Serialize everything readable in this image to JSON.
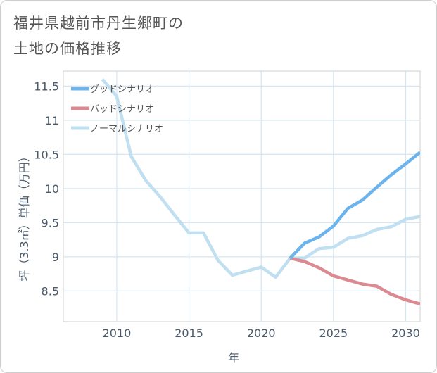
{
  "title_lines": [
    "福井県越前市丹生郷町の",
    "土地の価格推移"
  ],
  "chart_data": {
    "type": "line",
    "xlabel": "年",
    "ylabel": "坪（3.3㎡）単価（万円）",
    "xlim": [
      2006.3,
      2031
    ],
    "ylim": [
      8.05,
      11.72
    ],
    "x_ticks": [
      2010,
      2015,
      2020,
      2025,
      2030
    ],
    "x_tick_labels": [
      "2010",
      "2015",
      "2020",
      "2025",
      "2030"
    ],
    "y_ticks": [
      8.5,
      9,
      9.5,
      10,
      10.5,
      11,
      11.5
    ],
    "y_tick_labels": [
      "8.5",
      "9",
      "9.5",
      "10",
      "10.5",
      "11",
      "11.5"
    ],
    "grid": true,
    "legend_position": "top-left",
    "series": [
      {
        "name": "グッドシナリオ",
        "color": "#6cb4ee",
        "x": [
          2022,
          2023,
          2024,
          2025,
          2026,
          2027,
          2028,
          2029,
          2030,
          2031
        ],
        "y": [
          8.98,
          9.2,
          9.29,
          9.45,
          9.71,
          9.83,
          10.02,
          10.2,
          10.36,
          10.53
        ]
      },
      {
        "name": "バッドシナリオ",
        "color": "#dc8a92",
        "x": [
          2022,
          2023,
          2024,
          2025,
          2026,
          2027,
          2028,
          2029,
          2030,
          2031
        ],
        "y": [
          8.98,
          8.93,
          8.84,
          8.72,
          8.66,
          8.6,
          8.57,
          8.45,
          8.37,
          8.31
        ]
      },
      {
        "name": "ノーマルシナリオ",
        "color": "#c0dff0",
        "x": [
          2009,
          2010,
          2011,
          2012,
          2013,
          2014,
          2015,
          2016,
          2017,
          2018,
          2019,
          2020,
          2021,
          2022,
          2023,
          2024,
          2025,
          2026,
          2027,
          2028,
          2029,
          2030,
          2031
        ],
        "y": [
          11.6,
          11.35,
          10.47,
          10.12,
          9.88,
          9.61,
          9.35,
          9.35,
          8.95,
          8.73,
          8.79,
          8.85,
          8.7,
          8.98,
          8.98,
          9.12,
          9.14,
          9.27,
          9.31,
          9.4,
          9.44,
          9.55,
          9.59
        ]
      }
    ]
  }
}
